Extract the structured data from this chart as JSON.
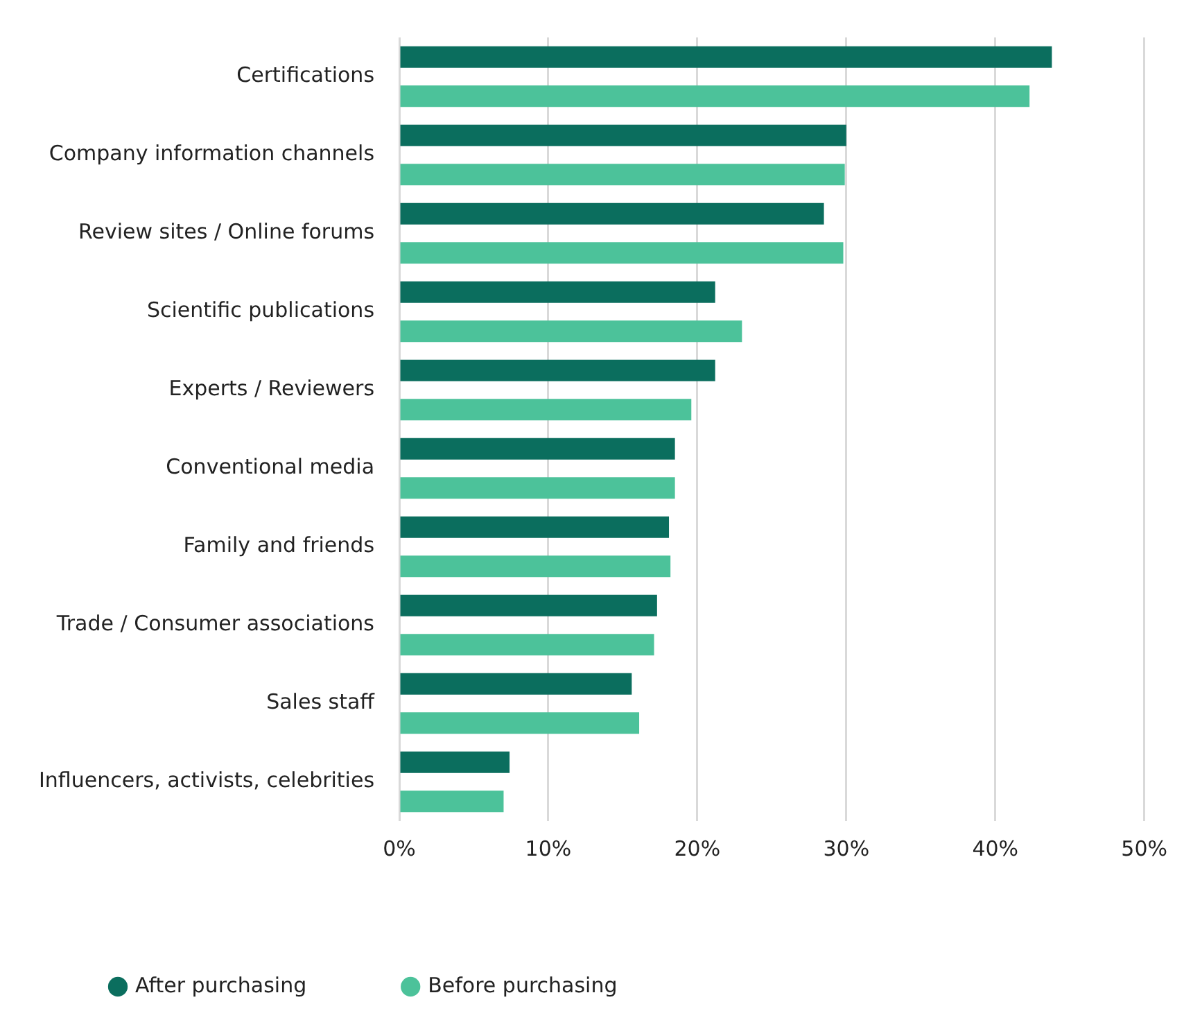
{
  "chart_data": {
    "type": "bar",
    "orientation": "horizontal",
    "categories": [
      "Certifications",
      "Company information channels",
      "Review sites / Online forums",
      "Scientific publications",
      "Experts / Reviewers",
      "Conventional media",
      "Family and friends",
      "Trade / Consumer associations",
      "Sales staff",
      "Influencers, activists, celebrities"
    ],
    "series": [
      {
        "name": "After purchasing",
        "color": "#0b6e5e",
        "values": [
          43.8,
          30.0,
          28.5,
          21.2,
          21.2,
          18.5,
          18.1,
          17.3,
          15.6,
          7.4
        ]
      },
      {
        "name": "Before purchasing",
        "color": "#4cc29a",
        "values": [
          42.3,
          29.9,
          29.8,
          23.0,
          19.6,
          18.5,
          18.2,
          17.1,
          16.1,
          7.0
        ]
      }
    ],
    "xlim": [
      0,
      50
    ],
    "xticks": [
      {
        "value": 0,
        "label": "0%"
      },
      {
        "value": 10,
        "label": "10%"
      },
      {
        "value": 20,
        "label": "20%"
      },
      {
        "value": 30,
        "label": "30%"
      },
      {
        "value": 40,
        "label": "40%"
      },
      {
        "value": 50,
        "label": "50%"
      }
    ],
    "grid": "x",
    "legend": "bottom left"
  }
}
